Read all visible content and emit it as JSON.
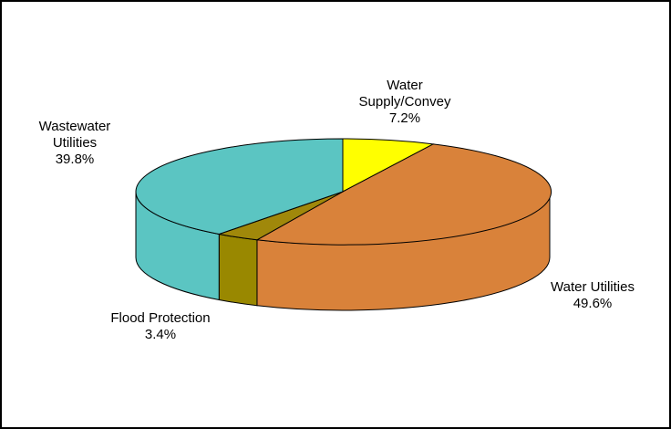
{
  "chart_data": {
    "type": "pie",
    "title": "",
    "slices": [
      {
        "name_lines": [
          "Water",
          "Supply/Convey"
        ],
        "value": 7.2,
        "value_label": "7.2%",
        "color": "#ffff00",
        "side_color": "#b3b300"
      },
      {
        "name_lines": [
          "Water Utilities"
        ],
        "value": 49.6,
        "value_label": "49.6%",
        "color": "#d9823a",
        "side_color": "#d9823a"
      },
      {
        "name_lines": [
          "Flood Protection"
        ],
        "value": 3.4,
        "value_label": "3.4%",
        "color": "#a0880a",
        "side_color": "#998800"
      },
      {
        "name_lines": [
          "Wastewater",
          "Utilities"
        ],
        "value": 39.8,
        "value_label": "39.8%",
        "color": "#5bc5c2",
        "side_color": "#5bc5c2"
      }
    ],
    "style": "3d",
    "legend": "none"
  }
}
